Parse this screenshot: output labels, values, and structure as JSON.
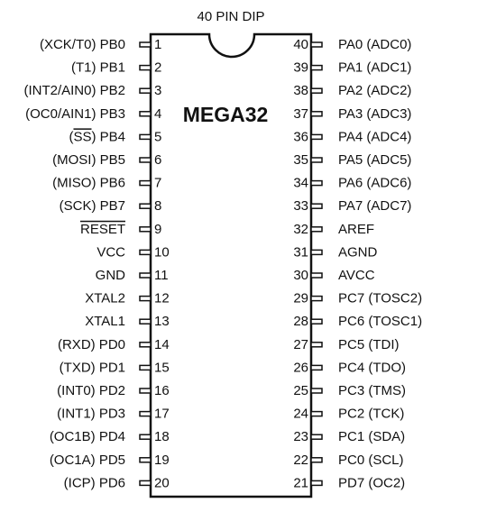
{
  "package_label": "40 PIN DIP",
  "chip_name": "MEGA32",
  "left_pins": [
    {
      "num": "1",
      "pre": "(XCK/T0) PB0",
      "overbar": "",
      "post": ""
    },
    {
      "num": "2",
      "pre": "(T1) PB1",
      "overbar": "",
      "post": ""
    },
    {
      "num": "3",
      "pre": "(INT2/AIN0) PB2",
      "overbar": "",
      "post": ""
    },
    {
      "num": "4",
      "pre": "(OC0/AIN1) PB3",
      "overbar": "",
      "post": ""
    },
    {
      "num": "5",
      "pre": "(",
      "overbar": "SS",
      "post": ") PB4"
    },
    {
      "num": "6",
      "pre": "(MOSI) PB5",
      "overbar": "",
      "post": ""
    },
    {
      "num": "7",
      "pre": "(MISO) PB6",
      "overbar": "",
      "post": ""
    },
    {
      "num": "8",
      "pre": "(SCK) PB7",
      "overbar": "",
      "post": ""
    },
    {
      "num": "9",
      "pre": "",
      "overbar": "RESET",
      "post": ""
    },
    {
      "num": "10",
      "pre": "VCC",
      "overbar": "",
      "post": ""
    },
    {
      "num": "11",
      "pre": "GND",
      "overbar": "",
      "post": ""
    },
    {
      "num": "12",
      "pre": "XTAL2",
      "overbar": "",
      "post": ""
    },
    {
      "num": "13",
      "pre": "XTAL1",
      "overbar": "",
      "post": ""
    },
    {
      "num": "14",
      "pre": "(RXD) PD0",
      "overbar": "",
      "post": ""
    },
    {
      "num": "15",
      "pre": "(TXD) PD1",
      "overbar": "",
      "post": ""
    },
    {
      "num": "16",
      "pre": "(INT0) PD2",
      "overbar": "",
      "post": ""
    },
    {
      "num": "17",
      "pre": "(INT1) PD3",
      "overbar": "",
      "post": ""
    },
    {
      "num": "18",
      "pre": "(OC1B) PD4",
      "overbar": "",
      "post": ""
    },
    {
      "num": "19",
      "pre": "(OC1A) PD5",
      "overbar": "",
      "post": ""
    },
    {
      "num": "20",
      "pre": "(ICP) PD6",
      "overbar": "",
      "post": ""
    }
  ],
  "right_pins": [
    {
      "num": "40",
      "label": "PA0 (ADC0)"
    },
    {
      "num": "39",
      "label": "PA1 (ADC1)"
    },
    {
      "num": "38",
      "label": "PA2 (ADC2)"
    },
    {
      "num": "37",
      "label": "PA3 (ADC3)"
    },
    {
      "num": "36",
      "label": "PA4 (ADC4)"
    },
    {
      "num": "35",
      "label": "PA5 (ADC5)"
    },
    {
      "num": "34",
      "label": "PA6 (ADC6)"
    },
    {
      "num": "33",
      "label": "PA7 (ADC7)"
    },
    {
      "num": "32",
      "label": "AREF"
    },
    {
      "num": "31",
      "label": "AGND"
    },
    {
      "num": "30",
      "label": "AVCC"
    },
    {
      "num": "29",
      "label": "PC7 (TOSC2)"
    },
    {
      "num": "28",
      "label": "PC6 (TOSC1)"
    },
    {
      "num": "27",
      "label": "PC5 (TDI)"
    },
    {
      "num": "26",
      "label": "PC4 (TDO)"
    },
    {
      "num": "25",
      "label": "PC3 (TMS)"
    },
    {
      "num": "24",
      "label": "PC2 (TCK)"
    },
    {
      "num": "23",
      "label": "PC1 (SDA)"
    },
    {
      "num": "22",
      "label": "PC0 (SCL)"
    },
    {
      "num": "21",
      "label": "PD7 (OC2)"
    }
  ]
}
